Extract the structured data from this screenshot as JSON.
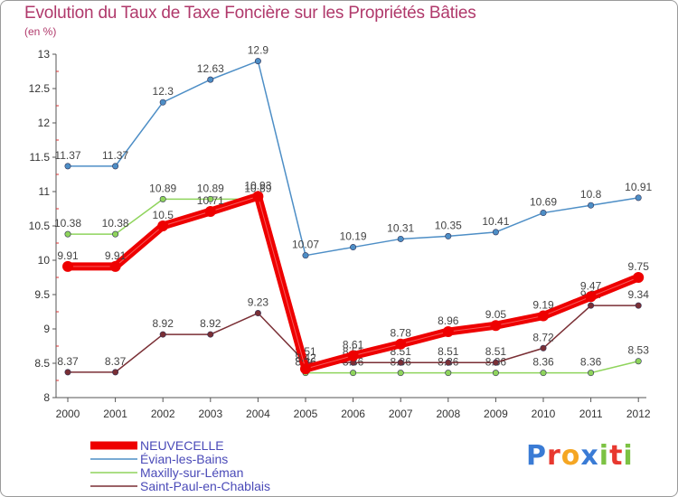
{
  "chart_data": {
    "type": "line",
    "title": "Evolution du Taux de Taxe Foncière sur les Propriétés Bâties",
    "subtitle": "(en %)",
    "xlabel": "",
    "ylabel": "",
    "x": [
      "2000",
      "2001",
      "2002",
      "2003",
      "2004",
      "2005",
      "2006",
      "2007",
      "2008",
      "2009",
      "2010",
      "2011",
      "2012"
    ],
    "ylim": [
      8,
      13
    ],
    "yticks": [
      "8",
      "8.5",
      "9",
      "9.5",
      "10",
      "10.5",
      "11",
      "11.5",
      "12",
      "12.5",
      "13"
    ],
    "grid": false,
    "legend": "bottom-left",
    "series": [
      {
        "name": "NEUVECELLE",
        "color": "#ee0000",
        "bold": true,
        "values": [
          9.91,
          9.91,
          10.5,
          10.71,
          10.93,
          8.42,
          8.61,
          8.78,
          8.96,
          9.05,
          9.19,
          9.47,
          9.75
        ],
        "labels": [
          "9.91",
          "9.91",
          "10.5",
          "10.71",
          "10.93",
          "8.42",
          "8.61",
          "8.78",
          "8.96",
          "9.05",
          "9.19",
          "9.47",
          "9.75"
        ]
      },
      {
        "name": "Évian-les-Bains",
        "color": "#4d8ec6",
        "values": [
          11.37,
          11.37,
          12.3,
          12.63,
          12.9,
          10.07,
          10.19,
          10.31,
          10.35,
          10.41,
          10.69,
          10.8,
          10.91
        ],
        "labels": [
          "11.37",
          "11.37",
          "12.3",
          "12.63",
          "12.9",
          "10.07",
          "10.19",
          "10.31",
          "10.35",
          "10.41",
          "10.69",
          "10.8",
          "10.91"
        ]
      },
      {
        "name": "Maxilly-sur-Léman",
        "color": "#8fd45c",
        "values": [
          10.38,
          10.38,
          10.89,
          10.89,
          10.89,
          8.36,
          8.36,
          8.36,
          8.36,
          8.36,
          8.36,
          8.36,
          8.53
        ],
        "labels": [
          "10.38",
          "10.38",
          "10.89",
          "10.89",
          "10.89",
          "8.36",
          "8.36",
          "8.36",
          "8.36",
          "8.36",
          "8.36",
          "8.36",
          "8.53"
        ]
      },
      {
        "name": "Saint-Paul-en-Chablais",
        "color": "#7a2f35",
        "values": [
          8.37,
          8.37,
          8.92,
          8.92,
          9.23,
          8.51,
          8.51,
          8.51,
          8.51,
          8.51,
          8.72,
          9.34,
          9.34
        ],
        "labels": [
          "8.37",
          "8.37",
          "8.92",
          "8.92",
          "9.23",
          "8.51",
          "8.51",
          "8.51",
          "8.51",
          "8.51",
          "8.72",
          "9.34",
          "9.34"
        ]
      }
    ]
  },
  "logo": {
    "letters": [
      {
        "ch": "P",
        "color": "#3a7bd5"
      },
      {
        "ch": "r",
        "color": "#e8382f"
      },
      {
        "ch": "o",
        "color": "#f5a623"
      },
      {
        "ch": "x",
        "color": "#3a7bd5"
      },
      {
        "ch": "i",
        "color": "#7cc243"
      },
      {
        "ch": "t",
        "color": "#e8382f"
      },
      {
        "ch": "i",
        "color": "#7cc243"
      }
    ]
  }
}
